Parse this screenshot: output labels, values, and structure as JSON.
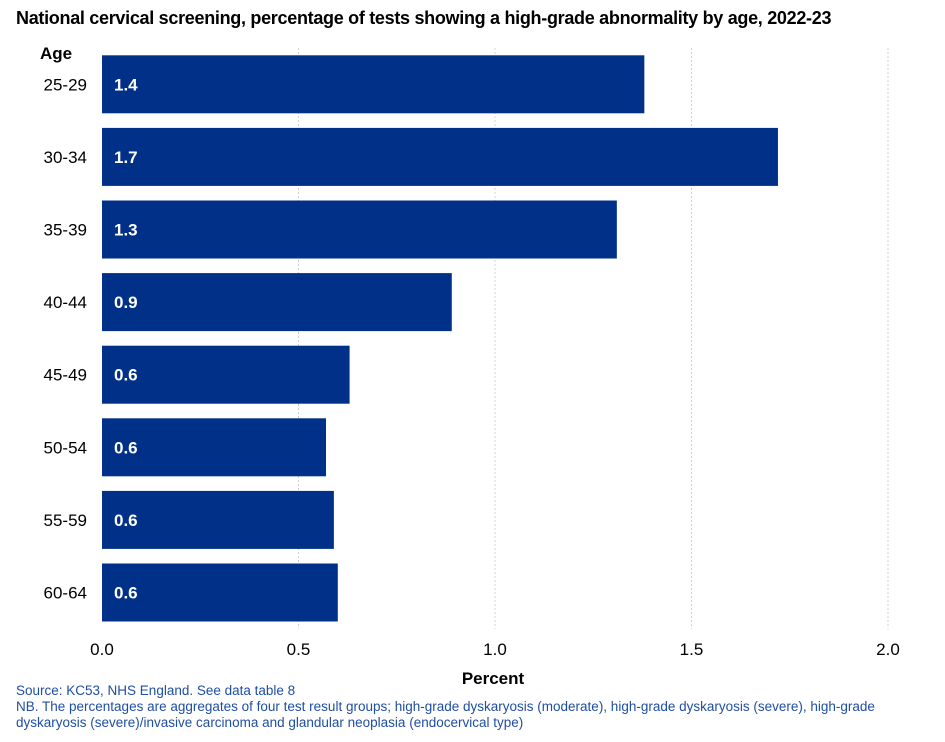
{
  "title": "National cervical screening, percentage of tests showing a high-grade abnormality by age, 2022-23",
  "source": "Source: KC53, NHS England. See data table 8",
  "note": "NB. The percentages are aggregates of four test result groups; high-grade dyskaryosis (moderate), high-grade dyskaryosis (severe), high-grade dyskaryosis (severe)/invasive carcinoma and glandular neoplasia (endocervical type)",
  "chart_data": {
    "type": "bar",
    "orientation": "horizontal",
    "title": "National cervical screening, percentage of tests showing a high-grade abnormality by age, 2022-23",
    "ylabel": "Age",
    "xlabel": "Percent",
    "categories": [
      "25-29",
      "30-34",
      "35-39",
      "40-44",
      "45-49",
      "50-54",
      "55-59",
      "60-64"
    ],
    "values": [
      1.38,
      1.72,
      1.31,
      0.89,
      0.63,
      0.57,
      0.59,
      0.6
    ],
    "data_labels": [
      "1.4",
      "1.7",
      "1.3",
      "0.9",
      "0.6",
      "0.6",
      "0.6",
      "0.6"
    ],
    "xlim": [
      0,
      2.0
    ],
    "xticks": [
      0,
      0.5,
      1.0,
      1.5,
      2.0
    ],
    "xtick_labels": [
      "0.0",
      "0.5",
      "1.0",
      "1.5",
      "2.0"
    ],
    "grid": "vertical",
    "legend": "none",
    "bar_color": "#003087"
  }
}
